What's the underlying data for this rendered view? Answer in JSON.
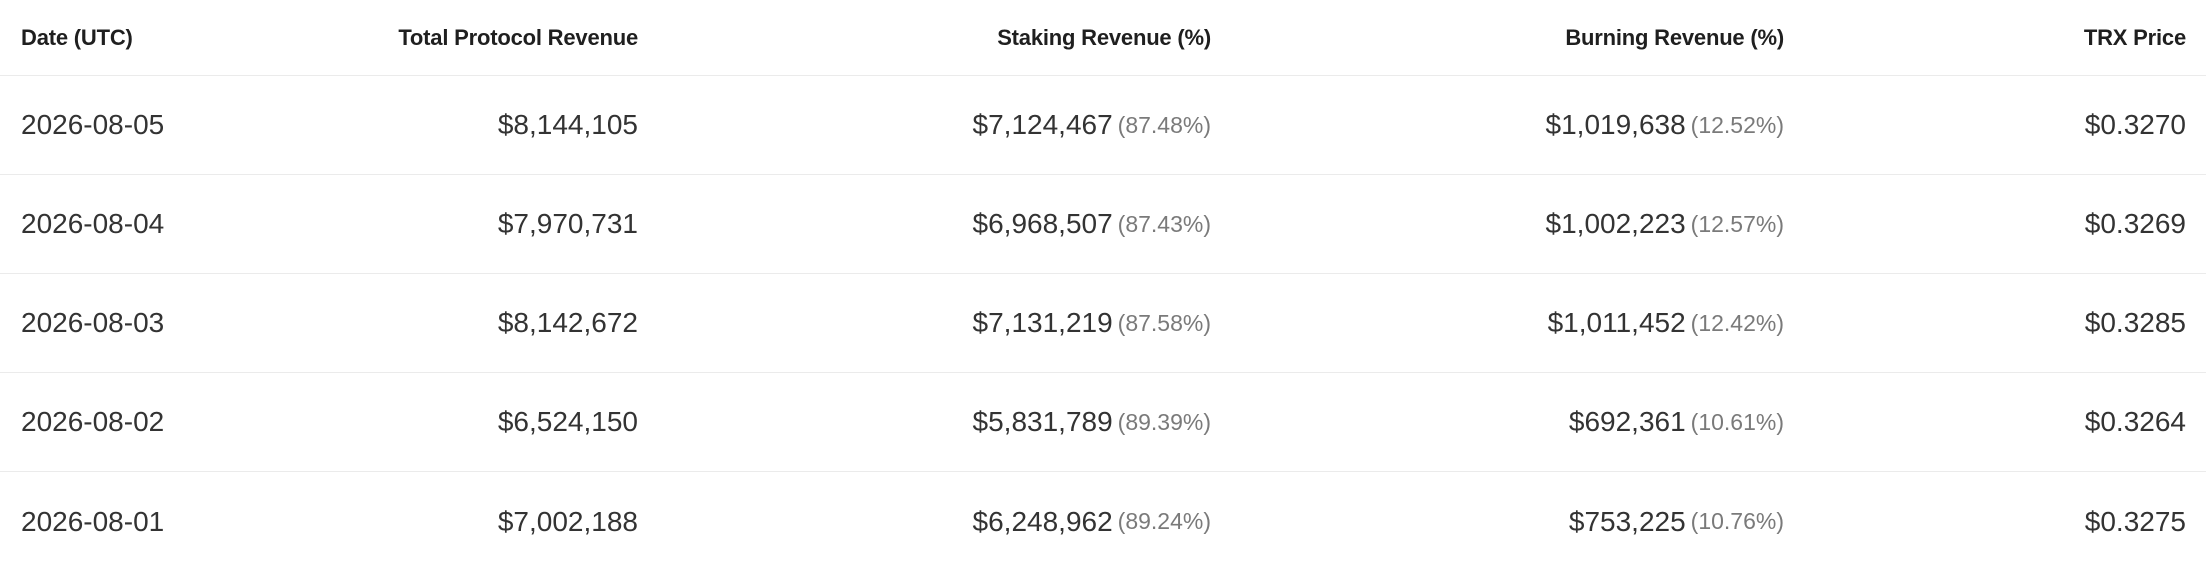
{
  "table": {
    "columns": {
      "date": "Date (UTC)",
      "total": "Total Protocol Revenue",
      "staking": "Staking Revenue (%)",
      "burning": "Burning Revenue (%)",
      "price": "TRX Price"
    },
    "rows": [
      {
        "date": "2026-08-05",
        "total": "$8,144,105",
        "staking": "$7,124,467",
        "staking_pct": "(87.48%)",
        "burning": "$1,019,638",
        "burning_pct": "(12.52%)",
        "price": "$0.3270"
      },
      {
        "date": "2026-08-04",
        "total": "$7,970,731",
        "staking": "$6,968,507",
        "staking_pct": "(87.43%)",
        "burning": "$1,002,223",
        "burning_pct": "(12.57%)",
        "price": "$0.3269"
      },
      {
        "date": "2026-08-03",
        "total": "$8,142,672",
        "staking": "$7,131,219",
        "staking_pct": "(87.58%)",
        "burning": "$1,011,452",
        "burning_pct": "(12.42%)",
        "price": "$0.3285"
      },
      {
        "date": "2026-08-02",
        "total": "$6,524,150",
        "staking": "$5,831,789",
        "staking_pct": "(89.39%)",
        "burning": "$692,361",
        "burning_pct": "(10.61%)",
        "price": "$0.3264"
      },
      {
        "date": "2026-08-01",
        "total": "$7,002,188",
        "staking": "$6,248,962",
        "staking_pct": "(89.24%)",
        "burning": "$753,225",
        "burning_pct": "(10.76%)",
        "price": "$0.3275"
      }
    ]
  }
}
